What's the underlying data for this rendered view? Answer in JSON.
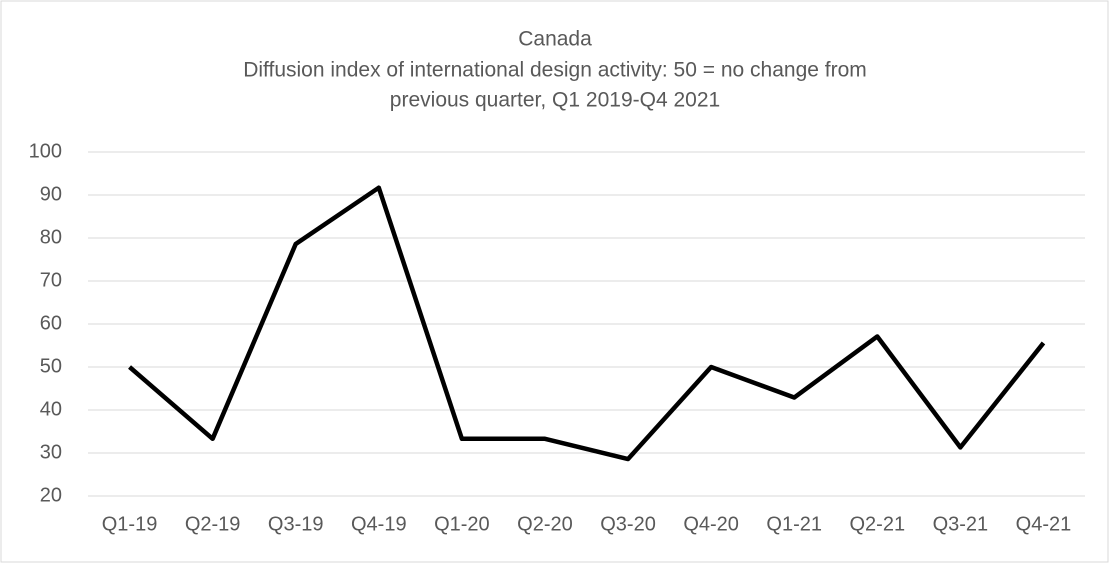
{
  "chart_data": {
    "type": "line",
    "title": "Canada",
    "subtitle": [
      "Diffusion index of international design activity: 50 = no change from",
      "previous quarter, Q1 2019-Q4 2021"
    ],
    "categories": [
      "Q1-19",
      "Q2-19",
      "Q3-19",
      "Q4-19",
      "Q1-20",
      "Q2-20",
      "Q3-20",
      "Q4-20",
      "Q1-21",
      "Q2-21",
      "Q3-21",
      "Q4-21"
    ],
    "values": [
      50,
      33.3,
      78.6,
      91.7,
      33.3,
      33.3,
      28.6,
      50,
      42.9,
      57.1,
      31.3,
      55.6
    ],
    "color": "#000000",
    "ylim": [
      20,
      100
    ],
    "yticks": [
      20,
      30,
      40,
      50,
      60,
      70,
      80,
      90,
      100
    ],
    "grid": true
  }
}
